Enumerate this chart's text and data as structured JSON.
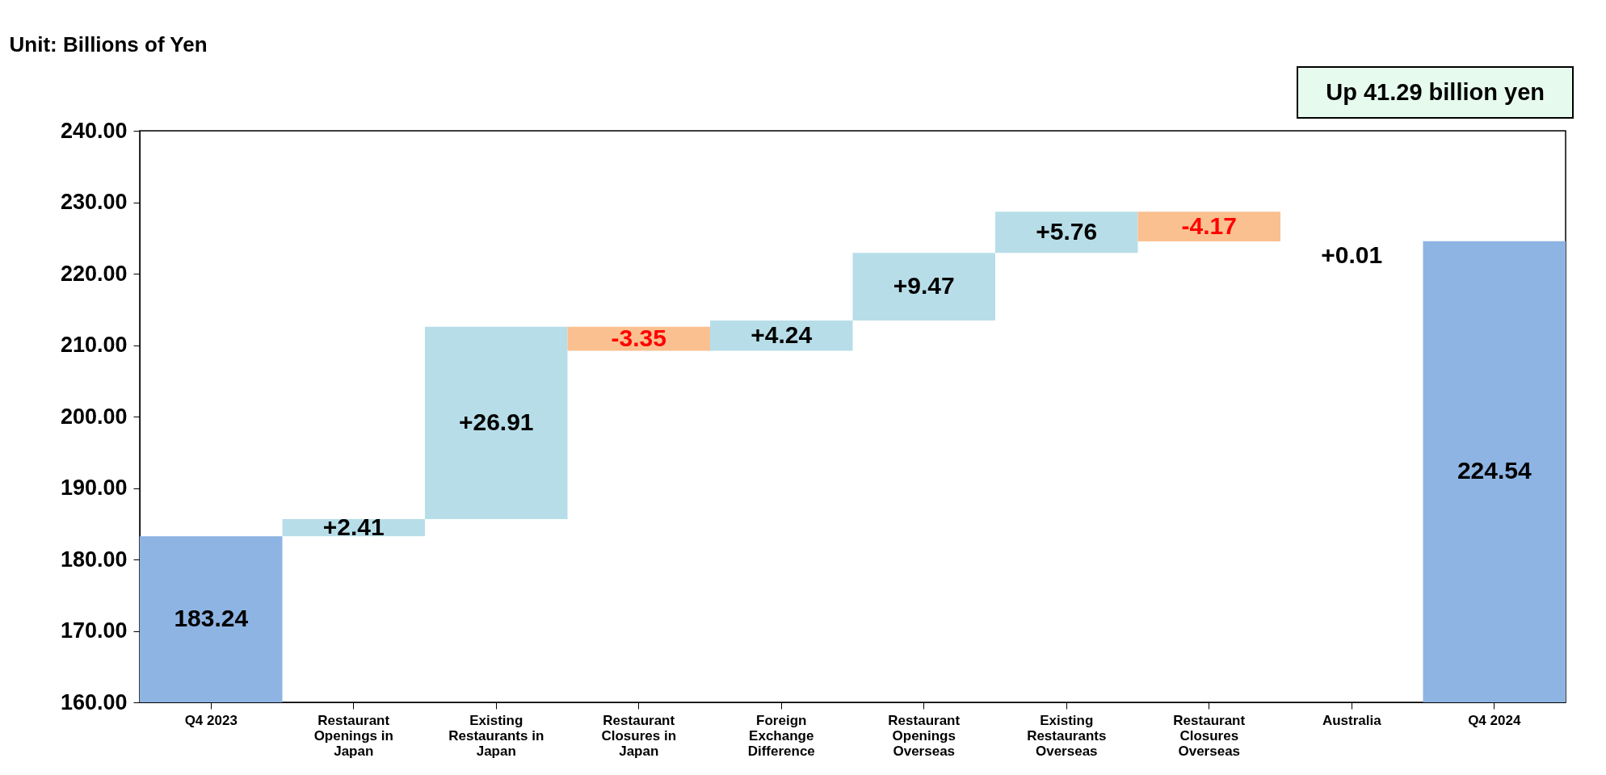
{
  "chart_data": {
    "type": "bar",
    "ylabel": "Unit: Billions of Yen",
    "categories": [
      "Q4 2023",
      "Restaurant Openings in Japan",
      "Existing Restaurants in Japan",
      "Restaurant Closures in Japan",
      "Foreign Exchange Difference",
      "Restaurant Openings Overseas",
      "Existing Restaurants Overseas",
      "Restaurant Closures Overseas",
      "Australia",
      "Q4 2024"
    ],
    "values": [
      183.24,
      2.41,
      26.91,
      -3.35,
      4.24,
      9.47,
      5.76,
      -4.17,
      0.01,
      224.54
    ],
    "base": [
      null,
      183.24,
      185.65,
      212.56,
      209.21,
      213.45,
      222.92,
      228.68,
      224.51,
      null
    ],
    "colors": [
      "#8eb4e3",
      "#b7dee8",
      "#b7dee8",
      "#fac090",
      "#b7dee8",
      "#b7dee8",
      "#b7dee8",
      "#fac090",
      "#b7dee8",
      "#8eb4e3"
    ],
    "value_labels": [
      "183.24",
      "+2.41",
      "+26.91",
      "-3.35",
      "+4.24",
      "+9.47",
      "+5.76",
      "-4.17",
      "+0.01",
      "224.54"
    ],
    "ylim": [
      160,
      240
    ],
    "yticks": [
      {
        "value": 160,
        "label": "160.00"
      },
      {
        "value": 170,
        "label": "170.00"
      },
      {
        "value": 180,
        "label": "180.00"
      },
      {
        "value": 190,
        "label": "190.00"
      },
      {
        "value": 200,
        "label": "200.00"
      },
      {
        "value": 210,
        "label": "210.00"
      },
      {
        "value": 220,
        "label": "220.00"
      },
      {
        "value": 230,
        "label": "230.00"
      },
      {
        "value": 240,
        "label": "240.00"
      }
    ],
    "annotations": [
      "Up 41.29 billion yen"
    ]
  }
}
